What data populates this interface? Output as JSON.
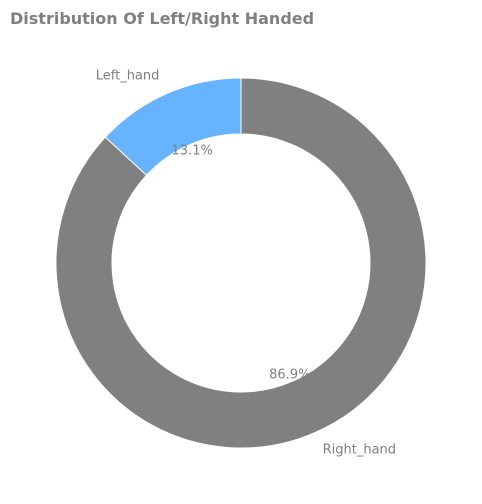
{
  "chart_data": {
    "type": "pie",
    "title": "Distribution Of Left/Right Handed",
    "categories": [
      "Left_hand",
      "Right_hand"
    ],
    "values": [
      13.1,
      86.9
    ],
    "percent_labels": [
      "13.1%",
      "86.9%"
    ],
    "colors": [
      "#66b3ff",
      "#808080"
    ],
    "donut": true,
    "legend": "none"
  }
}
